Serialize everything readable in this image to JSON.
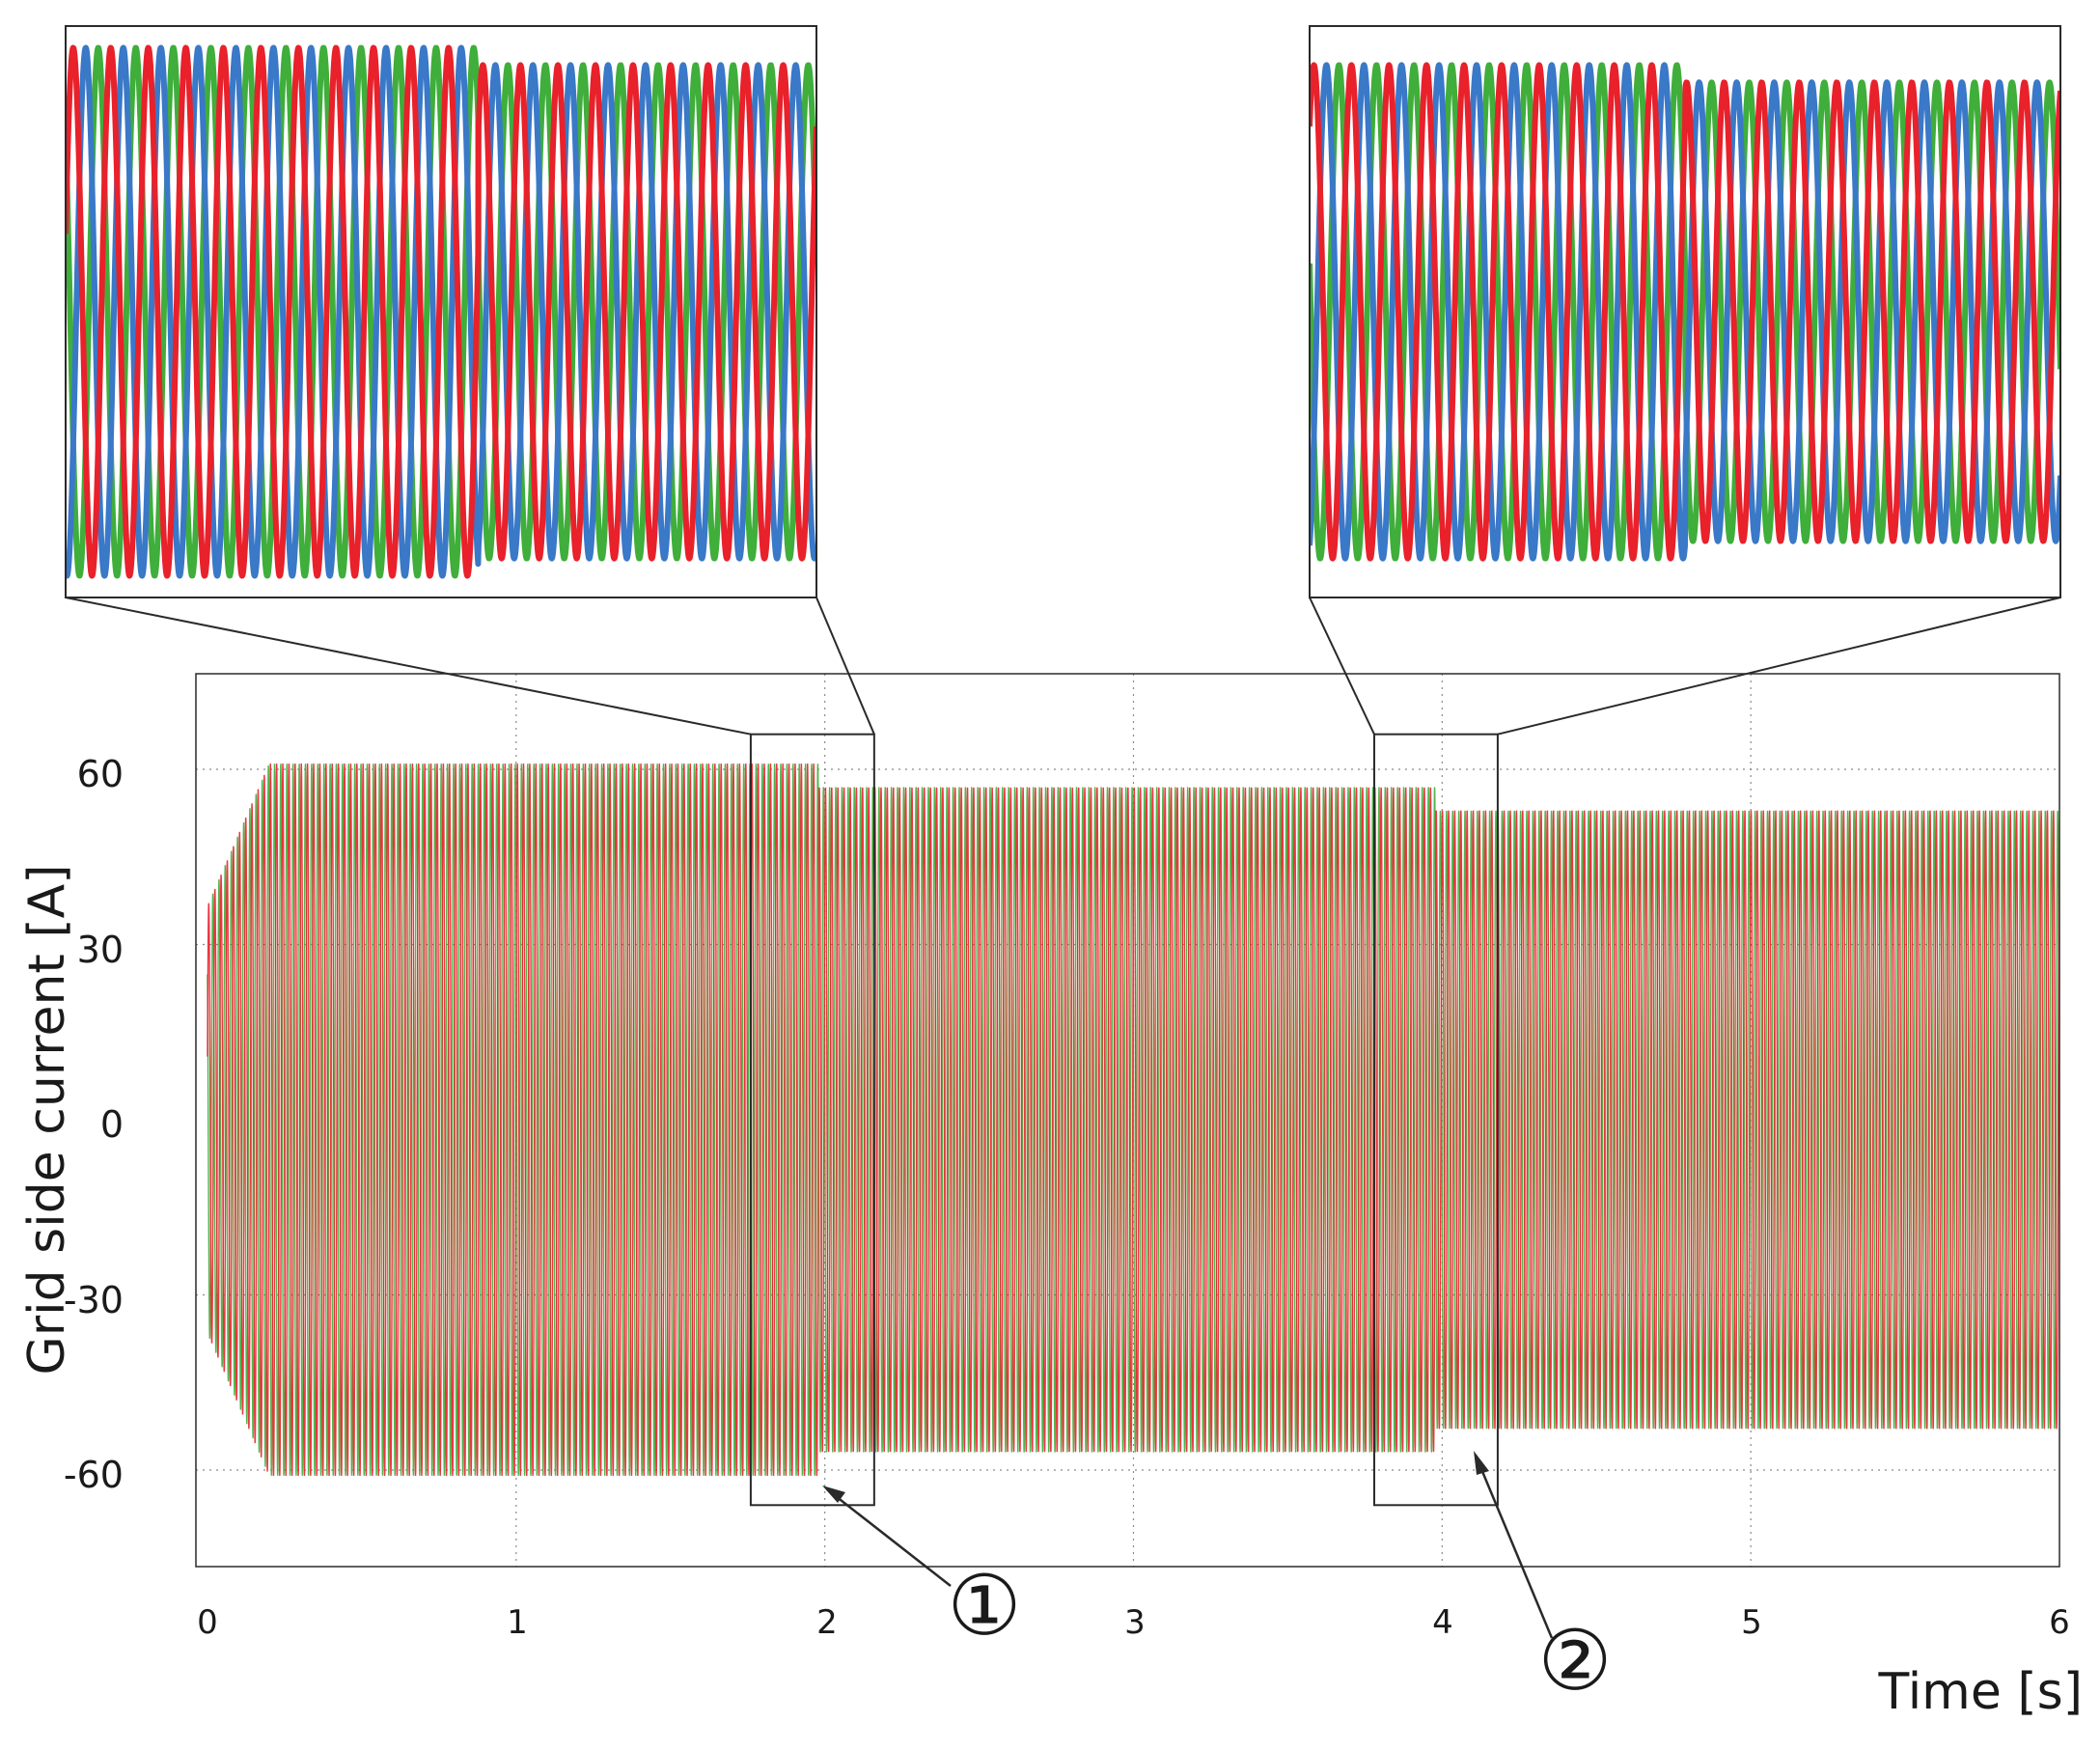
{
  "chart_data": {
    "type": "line",
    "xlabel": "Time [s]",
    "ylabel": "Grid side current [A]",
    "xlim": [
      0,
      6
    ],
    "ylim": [
      -75,
      75
    ],
    "x_ticks": [
      "0",
      "1",
      "2",
      "3",
      "4",
      "5",
      "6"
    ],
    "y_ticks": [
      "60",
      "30",
      "0",
      "-30",
      "-60"
    ],
    "grid": true,
    "frequency_hz": 50,
    "series": [
      {
        "color": "#e8212b"
      },
      {
        "color": "#3fae3b"
      },
      {
        "color": "#3a78c8"
      }
    ],
    "segments": [
      {
        "t_start": 0,
        "t_end": 1.98,
        "amplitude": 61
      },
      {
        "t_start": 1.98,
        "t_end": 3.98,
        "amplitude": 57
      },
      {
        "t_start": 3.98,
        "t_end": 6,
        "amplitude": 53
      }
    ],
    "zoom_windows": [
      {
        "label": "①",
        "t_start": 1.76,
        "t_end": 2.16,
        "i_min": -66,
        "i_max": 66
      },
      {
        "label": "②",
        "t_start": 3.78,
        "t_end": 4.18,
        "i_min": -66,
        "i_max": 66
      }
    ]
  }
}
